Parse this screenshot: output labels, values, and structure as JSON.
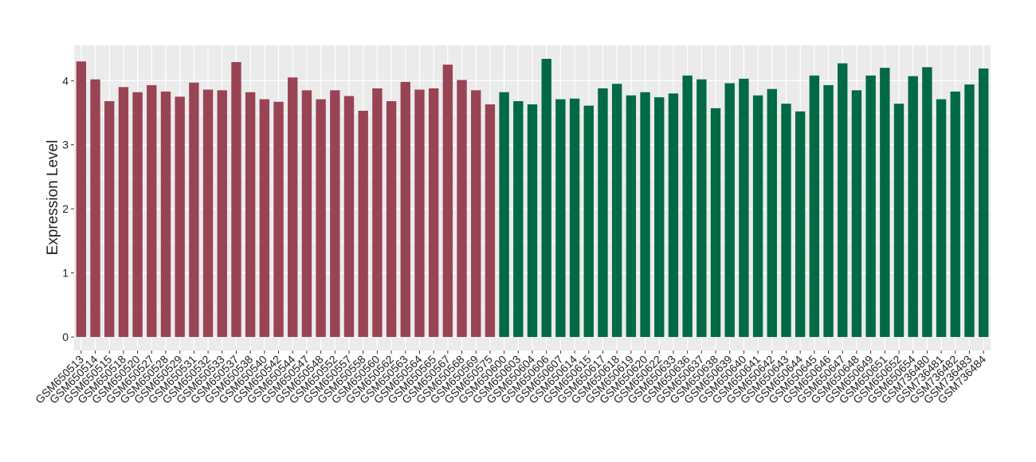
{
  "chart_data": {
    "type": "bar",
    "y_label": "Expression Level",
    "categories": [
      "GSM650513",
      "GSM650514",
      "GSM650515",
      "GSM650518",
      "GSM650520",
      "GSM650527",
      "GSM650528",
      "GSM650529",
      "GSM650531",
      "GSM650532",
      "GSM650533",
      "GSM650537",
      "GSM650538",
      "GSM650540",
      "GSM650542",
      "GSM650544",
      "GSM650547",
      "GSM650548",
      "GSM650552",
      "GSM650557",
      "GSM650558",
      "GSM650560",
      "GSM650562",
      "GSM650563",
      "GSM650564",
      "GSM650565",
      "GSM650567",
      "GSM650568",
      "GSM650569",
      "GSM650575",
      "GSM650600",
      "GSM650603",
      "GSM650604",
      "GSM650606",
      "GSM650607",
      "GSM650614",
      "GSM650615",
      "GSM650617",
      "GSM650618",
      "GSM650619",
      "GSM650620",
      "GSM650622",
      "GSM650633",
      "GSM650636",
      "GSM650637",
      "GSM650638",
      "GSM650639",
      "GSM650640",
      "GSM650641",
      "GSM650642",
      "GSM650643",
      "GSM650644",
      "GSM650645",
      "GSM650646",
      "GSM650647",
      "GSM650648",
      "GSM650649",
      "GSM650651",
      "GSM650652",
      "GSM650654",
      "GSM736480",
      "GSM736481",
      "GSM736482",
      "GSM736483",
      "GSM736484"
    ],
    "series": [
      {
        "color": "#994455",
        "values": [
          4.3,
          4.02,
          3.68,
          3.9,
          3.82,
          3.93,
          3.83,
          3.75,
          3.97,
          3.86,
          3.85,
          4.29,
          3.82,
          3.71,
          3.67,
          4.05,
          3.85,
          3.71,
          3.85,
          3.76,
          3.53,
          3.88,
          3.68,
          3.98,
          3.86,
          3.88,
          4.25,
          4.01,
          3.85,
          3.63,
          null,
          null,
          null,
          null,
          null,
          null,
          null,
          null,
          null,
          null,
          null,
          null,
          null,
          null,
          null,
          null,
          null,
          null,
          null,
          null,
          null,
          null,
          null,
          null,
          null,
          null,
          null,
          null,
          null,
          null,
          null,
          null,
          null,
          null,
          null
        ]
      },
      {
        "color": "#006a44",
        "values": [
          null,
          null,
          null,
          null,
          null,
          null,
          null,
          null,
          null,
          null,
          null,
          null,
          null,
          null,
          null,
          null,
          null,
          null,
          null,
          null,
          null,
          null,
          null,
          null,
          null,
          null,
          null,
          null,
          null,
          null,
          3.82,
          3.68,
          3.63,
          4.34,
          3.71,
          3.72,
          3.61,
          3.88,
          3.95,
          3.77,
          3.82,
          3.74,
          3.8,
          4.08,
          4.02,
          3.57,
          3.96,
          4.03,
          3.77,
          3.87,
          3.64,
          3.52,
          4.08,
          3.93,
          4.27,
          3.85,
          4.08,
          4.2,
          3.64,
          4.07,
          4.21,
          3.71,
          3.83,
          3.94,
          4.19
        ]
      }
    ],
    "ylim": [
      -0.21,
      4.55
    ],
    "yticks": [
      0,
      1,
      2,
      3,
      4
    ],
    "grid": true
  }
}
